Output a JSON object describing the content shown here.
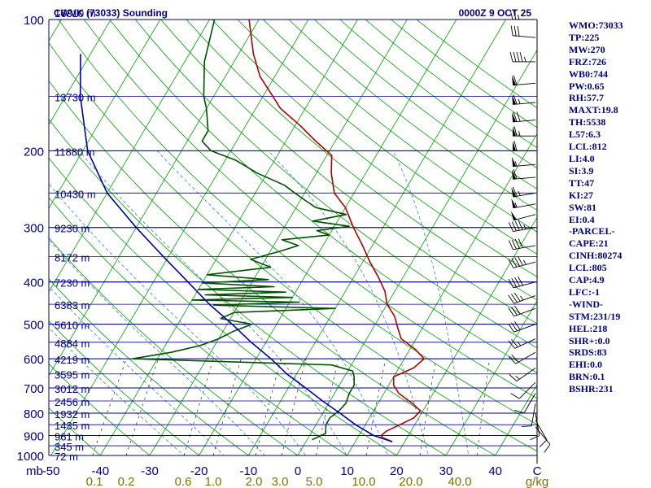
{
  "header": {
    "title": "CWVK (73033) Sounding",
    "datetime": "0000Z  9 OCT 25"
  },
  "stats_panel": [
    "WMO:73033",
    "TP:225",
    "MW:270",
    "FRZ:726",
    "WB0:744",
    "PW:0.65",
    "RH:57.7",
    "MAXT:19.8",
    "TH:5538",
    "L57:6.3",
    "LCL:812",
    "LI:4.0",
    "SI:3.9",
    "TT:47",
    "KI:27",
    "SW:81",
    "EI:0.4",
    "-PARCEL-",
    "CAPE:21",
    "CINH:80274",
    "LCL:805",
    "CAP:4.9",
    "LFC:-1",
    "-WIND-",
    "STM:231/19",
    "HEL:218",
    "SHR+:0.0",
    "SRDS:83",
    "EHI:0.0",
    "BRN:0.1",
    "BSHR:231"
  ],
  "colors": {
    "background": "#ffffff",
    "isobar": "#000080",
    "dry_adiabat": "#00a000",
    "moist_adiabat": "#5090c0",
    "mixing_ratio": "#000000",
    "temperature": "#b00000",
    "dewpoint": "#005000",
    "parcel": "#0000b0",
    "axis_text": "#000080",
    "mixing_ratio_text": "#807000",
    "wind_barb": "#000000"
  },
  "chart_data": {
    "type": "line",
    "chart_kind": "skew-T log-P sounding",
    "y_axis": {
      "scale": "log pressure",
      "unit": "mb",
      "range": [
        1000,
        100
      ],
      "pressure_ticks": [
        100,
        200,
        300,
        400,
        500,
        600,
        700,
        800,
        900,
        1000
      ],
      "pressure_tick_labels": [
        "100",
        "200",
        "300",
        "400",
        "500",
        "600",
        "700",
        "800",
        "900",
        "1000"
      ]
    },
    "x_axis": {
      "unit_label": "mb",
      "temperature_labels": [
        "-50",
        "-40",
        "-30",
        "-20",
        "-10",
        "0",
        "10",
        "20",
        "30",
        "40",
        "C"
      ],
      "mixing_ratio_labels": [
        "0.1",
        "0.2",
        "0.6",
        "1.0",
        "2.0",
        "3.0",
        "5.0",
        "10.0",
        "20.0",
        "40.0",
        "g/kg"
      ]
    },
    "height_levels": [
      {
        "p": 100,
        "label": "16310 m"
      },
      {
        "p": 150,
        "label": "13730 m"
      },
      {
        "p": 200,
        "label": "11880 m"
      },
      {
        "p": 250,
        "label": "10430 m"
      },
      {
        "p": 300,
        "label": "9230 m"
      },
      {
        "p": 350,
        "label": "8172 m"
      },
      {
        "p": 400,
        "label": "7230 m"
      },
      {
        "p": 450,
        "label": "6383 m"
      },
      {
        "p": 500,
        "label": "5610 m"
      },
      {
        "p": 550,
        "label": "4884 m"
      },
      {
        "p": 600,
        "label": "4219 m"
      },
      {
        "p": 650,
        "label": "3595 m"
      },
      {
        "p": 700,
        "label": "3012 m"
      },
      {
        "p": 750,
        "label": "2456 m"
      },
      {
        "p": 800,
        "label": "1932 m"
      },
      {
        "p": 850,
        "label": "1435 m"
      },
      {
        "p": 900,
        "label": "961 m"
      },
      {
        "p": 950,
        "label": "345 m"
      },
      {
        "p": 1000,
        "label": "72 m"
      }
    ],
    "series": [
      {
        "key": "temperature",
        "points": [
          [
            930,
            17.5
          ],
          [
            910,
            15
          ],
          [
            900,
            14.5
          ],
          [
            880,
            15
          ],
          [
            850,
            17
          ],
          [
            820,
            19
          ],
          [
            790,
            19.5
          ],
          [
            760,
            17
          ],
          [
            720,
            13
          ],
          [
            690,
            11
          ],
          [
            660,
            10
          ],
          [
            630,
            13
          ],
          [
            600,
            14
          ],
          [
            570,
            11
          ],
          [
            540,
            7
          ],
          [
            510,
            5
          ],
          [
            480,
            3
          ],
          [
            450,
            0
          ],
          [
            420,
            -2
          ],
          [
            390,
            -5
          ],
          [
            360,
            -8.5
          ],
          [
            330,
            -12
          ],
          [
            300,
            -16
          ],
          [
            270,
            -20
          ],
          [
            250,
            -24
          ],
          [
            225,
            -27
          ],
          [
            205,
            -29
          ],
          [
            190,
            -34
          ],
          [
            175,
            -39
          ],
          [
            160,
            -45
          ],
          [
            150,
            -48
          ],
          [
            135,
            -53
          ],
          [
            120,
            -57
          ],
          [
            100,
            -62
          ]
        ]
      },
      {
        "key": "dewpoint",
        "points": [
          [
            920,
            1
          ],
          [
            905,
            2
          ],
          [
            890,
            3
          ],
          [
            870,
            2.5
          ],
          [
            850,
            2
          ],
          [
            820,
            2
          ],
          [
            790,
            3
          ],
          [
            760,
            3.5
          ],
          [
            720,
            3
          ],
          [
            690,
            3
          ],
          [
            660,
            2
          ],
          [
            640,
            1
          ],
          [
            620,
            -4
          ],
          [
            600,
            -45
          ],
          [
            580,
            -38
          ],
          [
            560,
            -33
          ],
          [
            540,
            -30
          ],
          [
            520,
            -28
          ],
          [
            500,
            -25
          ],
          [
            485,
            -32
          ],
          [
            470,
            -30
          ],
          [
            460,
            -10
          ],
          [
            452,
            -35
          ],
          [
            445,
            -18
          ],
          [
            440,
            -40
          ],
          [
            434,
            -20
          ],
          [
            428,
            -38
          ],
          [
            422,
            -22
          ],
          [
            416,
            -40
          ],
          [
            410,
            -25
          ],
          [
            402,
            -40
          ],
          [
            395,
            -27
          ],
          [
            385,
            -40
          ],
          [
            370,
            -28
          ],
          [
            355,
            -33
          ],
          [
            340,
            -28
          ],
          [
            330,
            -25
          ],
          [
            320,
            -29
          ],
          [
            312,
            -20
          ],
          [
            305,
            -23
          ],
          [
            298,
            -17
          ],
          [
            290,
            -25
          ],
          [
            280,
            -19
          ],
          [
            270,
            -26
          ],
          [
            260,
            -29
          ],
          [
            250,
            -32
          ],
          [
            240,
            -35
          ],
          [
            225,
            -42
          ],
          [
            210,
            -48
          ],
          [
            200,
            -54
          ],
          [
            190,
            -57
          ],
          [
            180,
            -57
          ],
          [
            160,
            -60
          ],
          [
            150,
            -62
          ],
          [
            125,
            -66
          ],
          [
            100,
            -69
          ]
        ]
      },
      {
        "key": "parcel",
        "points": [
          [
            930,
            17.5
          ],
          [
            900,
            13
          ],
          [
            850,
            8
          ],
          [
            800,
            3.5
          ],
          [
            750,
            -1.5
          ],
          [
            700,
            -6.5
          ],
          [
            650,
            -12
          ],
          [
            600,
            -17
          ],
          [
            550,
            -23
          ],
          [
            500,
            -29
          ],
          [
            450,
            -36
          ],
          [
            400,
            -43
          ],
          [
            350,
            -51
          ],
          [
            300,
            -60
          ],
          [
            250,
            -70
          ],
          [
            200,
            -79
          ],
          [
            150,
            -87
          ],
          [
            120,
            -92
          ]
        ]
      }
    ],
    "wind_barbs": [
      {
        "p": 100,
        "dir": 270,
        "spd": 25
      },
      {
        "p": 110,
        "dir": 275,
        "spd": 30
      },
      {
        "p": 125,
        "dir": 270,
        "spd": 45
      },
      {
        "p": 140,
        "dir": 265,
        "spd": 60
      },
      {
        "p": 155,
        "dir": 265,
        "spd": 65
      },
      {
        "p": 170,
        "dir": 265,
        "spd": 70
      },
      {
        "p": 185,
        "dir": 270,
        "spd": 65
      },
      {
        "p": 200,
        "dir": 270,
        "spd": 60
      },
      {
        "p": 215,
        "dir": 265,
        "spd": 55
      },
      {
        "p": 230,
        "dir": 265,
        "spd": 60
      },
      {
        "p": 250,
        "dir": 260,
        "spd": 65
      },
      {
        "p": 265,
        "dir": 260,
        "spd": 55
      },
      {
        "p": 280,
        "dir": 255,
        "spd": 50
      },
      {
        "p": 300,
        "dir": 260,
        "spd": 45
      },
      {
        "p": 330,
        "dir": 260,
        "spd": 40
      },
      {
        "p": 360,
        "dir": 255,
        "spd": 45
      },
      {
        "p": 400,
        "dir": 255,
        "spd": 40
      },
      {
        "p": 430,
        "dir": 250,
        "spd": 35
      },
      {
        "p": 460,
        "dir": 250,
        "spd": 30
      },
      {
        "p": 500,
        "dir": 250,
        "spd": 30
      },
      {
        "p": 540,
        "dir": 245,
        "spd": 25
      },
      {
        "p": 580,
        "dir": 240,
        "spd": 20
      },
      {
        "p": 630,
        "dir": 235,
        "spd": 15
      },
      {
        "p": 680,
        "dir": 225,
        "spd": 10
      },
      {
        "p": 720,
        "dir": 210,
        "spd": 10
      },
      {
        "p": 760,
        "dir": 190,
        "spd": 10
      },
      {
        "p": 800,
        "dir": 170,
        "spd": 10
      },
      {
        "p": 830,
        "dir": 150,
        "spd": 10
      },
      {
        "p": 860,
        "dir": 140,
        "spd": 10
      }
    ]
  }
}
